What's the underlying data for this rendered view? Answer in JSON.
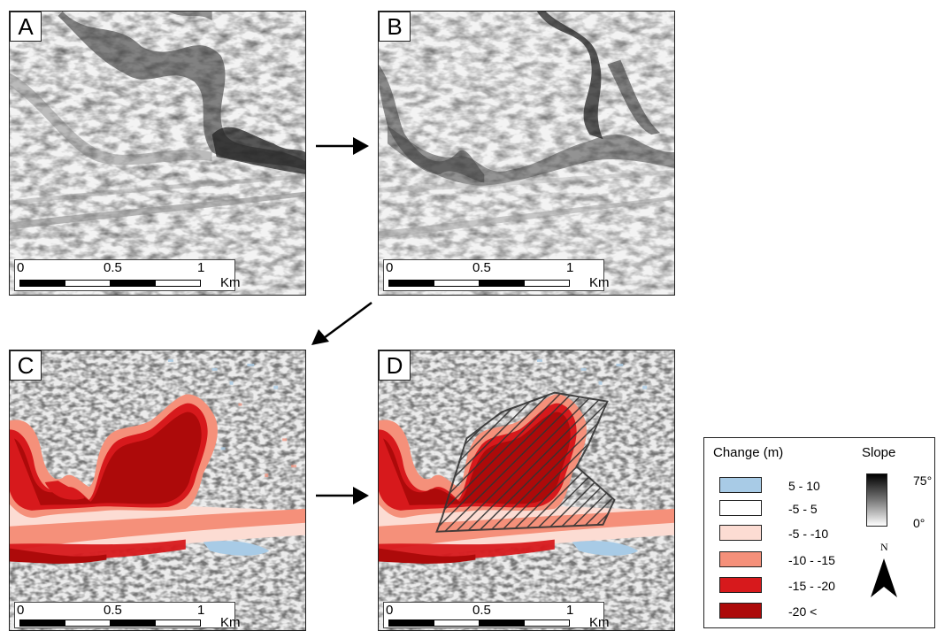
{
  "panels": [
    {
      "letter": "A",
      "style": "slope"
    },
    {
      "letter": "B",
      "style": "slope"
    },
    {
      "letter": "C",
      "style": "change"
    },
    {
      "letter": "D",
      "style": "change-outlined"
    }
  ],
  "scalebar": {
    "ticks": [
      "0",
      "0.5",
      "1"
    ],
    "unit": "Km"
  },
  "legend": {
    "change_title": "Change (m)",
    "slope_title": "Slope",
    "classes": [
      {
        "label": "5 - 10",
        "color": "#a8cbe6"
      },
      {
        "label": "-5 - 5",
        "color": "#ffffff"
      },
      {
        "label": "-5 - -10",
        "color": "#fcdcd3"
      },
      {
        "label": "-10 - -15",
        "color": "#f5907a"
      },
      {
        "label": "-15 - -20",
        "color": "#d7191c"
      },
      {
        "label": "-20 <",
        "color": "#ad0a0a"
      }
    ],
    "slope_max": "75°",
    "slope_min": "0°",
    "north": "N"
  }
}
